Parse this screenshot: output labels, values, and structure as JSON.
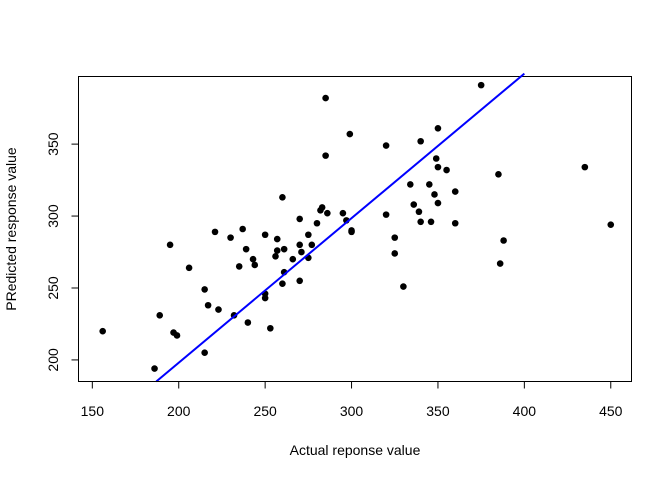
{
  "chart_data": {
    "type": "scatter",
    "title": "",
    "xlabel": "Actual reponse value",
    "ylabel": "PRedicted response value",
    "xlim": [
      142,
      462
    ],
    "ylim": [
      185,
      397
    ],
    "xticks": [
      150,
      200,
      250,
      300,
      350,
      400,
      450
    ],
    "yticks": [
      200,
      250,
      300,
      350
    ],
    "grid": false,
    "point_color": "#000000",
    "fit_line": {
      "color": "#0000ff",
      "x": [
        187,
        400
      ],
      "y": [
        185,
        399
      ]
    },
    "points": [
      [
        156,
        220
      ],
      [
        186,
        194
      ],
      [
        189,
        231
      ],
      [
        195,
        280
      ],
      [
        197,
        219
      ],
      [
        199,
        217
      ],
      [
        206,
        264
      ],
      [
        215,
        249
      ],
      [
        215,
        205
      ],
      [
        217,
        238
      ],
      [
        221,
        289
      ],
      [
        223,
        235
      ],
      [
        230,
        285
      ],
      [
        232,
        231
      ],
      [
        235,
        265
      ],
      [
        237,
        291
      ],
      [
        239,
        277
      ],
      [
        240,
        226
      ],
      [
        243,
        270
      ],
      [
        244,
        266
      ],
      [
        250,
        287
      ],
      [
        250,
        243
      ],
      [
        250,
        246
      ],
      [
        253,
        222
      ],
      [
        256,
        272
      ],
      [
        257,
        276
      ],
      [
        257,
        284
      ],
      [
        260,
        253
      ],
      [
        260,
        313
      ],
      [
        261,
        277
      ],
      [
        261,
        261
      ],
      [
        266,
        270
      ],
      [
        270,
        255
      ],
      [
        270,
        280
      ],
      [
        270,
        298
      ],
      [
        271,
        275
      ],
      [
        275,
        271
      ],
      [
        275,
        287
      ],
      [
        277,
        280
      ],
      [
        280,
        295
      ],
      [
        282,
        304
      ],
      [
        283,
        306
      ],
      [
        285,
        382
      ],
      [
        285,
        342
      ],
      [
        286,
        302
      ],
      [
        295,
        302
      ],
      [
        297,
        297
      ],
      [
        299,
        357
      ],
      [
        300,
        290
      ],
      [
        300,
        289
      ],
      [
        320,
        301
      ],
      [
        320,
        349
      ],
      [
        325,
        285
      ],
      [
        325,
        274
      ],
      [
        330,
        251
      ],
      [
        334,
        322
      ],
      [
        336,
        308
      ],
      [
        339,
        303
      ],
      [
        340,
        352
      ],
      [
        340,
        296
      ],
      [
        345,
        322
      ],
      [
        346,
        296
      ],
      [
        348,
        315
      ],
      [
        349,
        340
      ],
      [
        350,
        309
      ],
      [
        350,
        361
      ],
      [
        350,
        334
      ],
      [
        355,
        332
      ],
      [
        360,
        317
      ],
      [
        360,
        295
      ],
      [
        375,
        391
      ],
      [
        385,
        329
      ],
      [
        386,
        267
      ],
      [
        388,
        283
      ],
      [
        435,
        334
      ],
      [
        450,
        294
      ]
    ]
  }
}
